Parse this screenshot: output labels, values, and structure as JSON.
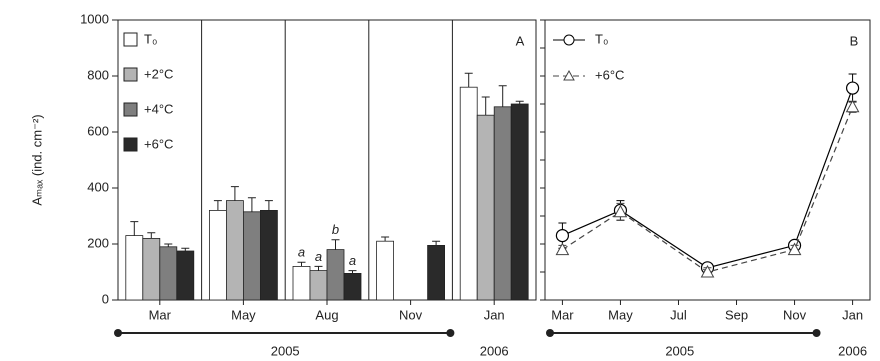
{
  "chart_data": [
    {
      "type": "bar",
      "panel_label": "A",
      "ylabel": "Aₘₐₓ (ind. cm⁻²)",
      "categories": [
        "Mar",
        "May",
        "Aug",
        "Nov",
        "Jan"
      ],
      "ylim": [
        0,
        1000
      ],
      "yticks": [
        0,
        200,
        400,
        600,
        800,
        1000
      ],
      "year_labels": [
        "2005",
        "2006"
      ],
      "series": [
        {
          "name": "T₀",
          "color": "#ffffff",
          "values": [
            230,
            320,
            120,
            210,
            760
          ],
          "errors": [
            50,
            35,
            15,
            15,
            50
          ],
          "letters": [
            null,
            null,
            "a",
            null,
            null
          ]
        },
        {
          "name": "+2°C",
          "color": "#b4b4b4",
          "values": [
            220,
            355,
            105,
            null,
            660
          ],
          "errors": [
            20,
            50,
            15,
            null,
            65
          ],
          "letters": [
            null,
            null,
            "a",
            null,
            null
          ]
        },
        {
          "name": "+4°C",
          "color": "#7f7f7f",
          "values": [
            190,
            315,
            180,
            null,
            690
          ],
          "errors": [
            10,
            50,
            35,
            null,
            75
          ],
          "letters": [
            null,
            null,
            "b",
            null,
            null
          ]
        },
        {
          "name": "+6°C",
          "color": "#2a2a2a",
          "values": [
            175,
            320,
            95,
            195,
            700
          ],
          "errors": [
            10,
            35,
            10,
            15,
            10
          ],
          "letters": [
            null,
            null,
            "a",
            null,
            null
          ]
        }
      ]
    },
    {
      "type": "line",
      "panel_label": "B",
      "x": [
        3,
        5,
        8,
        11,
        13
      ],
      "xlim": [
        2.4,
        13.6
      ],
      "xticks": [
        {
          "value": 3,
          "label": "Mar"
        },
        {
          "value": 5,
          "label": "May"
        },
        {
          "value": 7,
          "label": "Jul"
        },
        {
          "value": 9,
          "label": "Sep"
        },
        {
          "value": 11,
          "label": "Nov"
        },
        {
          "value": 13,
          "label": "Jan"
        }
      ],
      "ylim": [
        0,
        1000
      ],
      "yticks": [
        0,
        100,
        200,
        300,
        400,
        500,
        600,
        700,
        800,
        900,
        1000
      ],
      "year_labels": [
        "2005",
        "2006"
      ],
      "series": [
        {
          "name": "T₀",
          "color": "#000000",
          "marker": "circle",
          "dashed": false,
          "values": [
            230,
            320,
            115,
            195,
            757
          ],
          "errors": [
            45,
            35,
            15,
            15,
            50
          ]
        },
        {
          "name": "+6°C",
          "color": "#444444",
          "marker": "triangle",
          "dashed": true,
          "values": [
            180,
            315,
            100,
            180,
            690
          ],
          "errors": [
            15,
            30,
            15,
            15,
            20
          ]
        }
      ]
    }
  ]
}
